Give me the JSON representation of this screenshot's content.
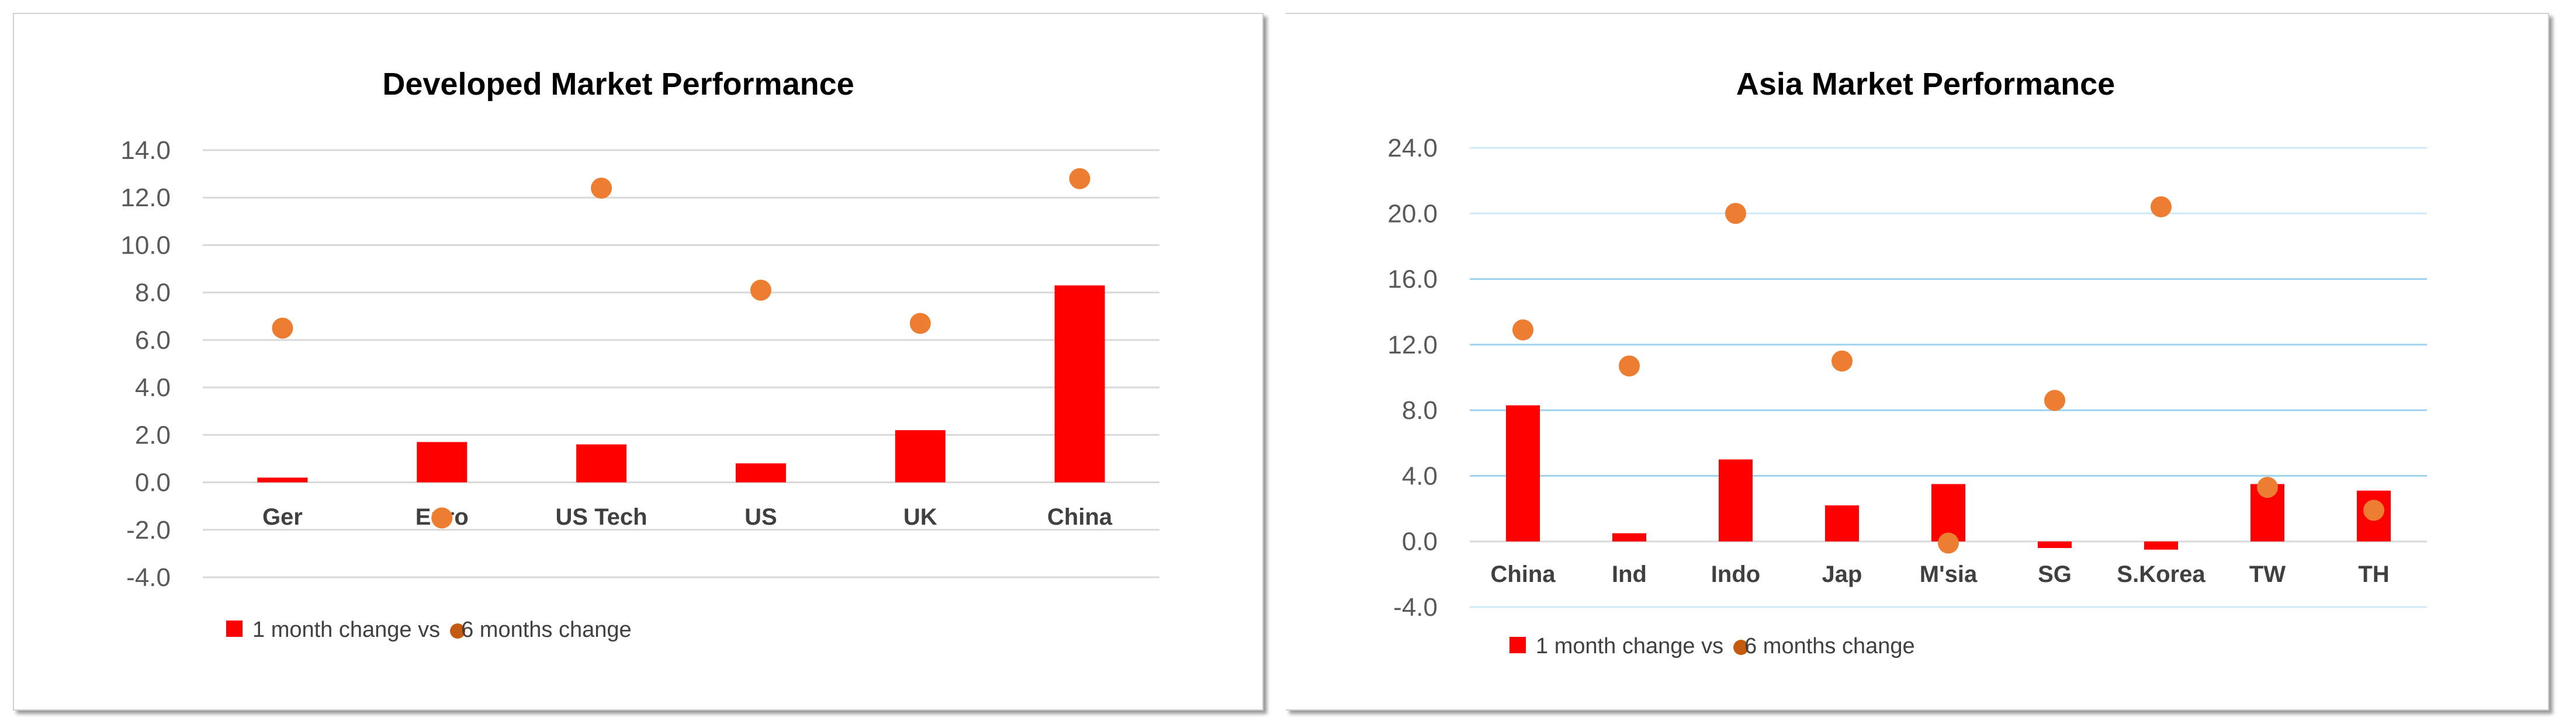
{
  "chart_data": [
    {
      "type": "bar+scatter",
      "title": "Developed Market Performance",
      "categories": [
        "Ger",
        "Euro",
        "US Tech",
        "US",
        "UK",
        "China"
      ],
      "series": [
        {
          "name": "1 month change vs",
          "type": "bar",
          "color": "#ff0000",
          "values": [
            0.2,
            1.7,
            1.6,
            0.8,
            2.2,
            8.3
          ]
        },
        {
          "name": "6 months change",
          "type": "scatter",
          "color": "#ed7d31",
          "values": [
            6.5,
            -1.5,
            12.4,
            8.1,
            6.7,
            12.8
          ]
        }
      ],
      "ylim": [
        -4,
        14
      ],
      "yticks": [
        "-4.0",
        "-2.0",
        "0.0",
        "2.0",
        "4.0",
        "6.0",
        "8.0",
        "10.0",
        "12.0",
        "14.0"
      ],
      "grid": true,
      "grid_color": "#d9d9d9",
      "legend": "bottom-left"
    },
    {
      "type": "bar+scatter",
      "title": "Asia Market Performance",
      "categories": [
        "China",
        "Ind",
        "Indo",
        "Jap",
        "M'sia",
        "SG",
        "S.Korea",
        "TW",
        "TH"
      ],
      "series": [
        {
          "name": "1 month change vs",
          "type": "bar",
          "color": "#ff0000",
          "values": [
            8.3,
            0.5,
            5.0,
            2.2,
            3.5,
            -0.4,
            -0.5,
            3.5,
            3.1
          ]
        },
        {
          "name": "6 months change",
          "type": "scatter",
          "color": "#ed7d31",
          "values": [
            12.9,
            10.7,
            20.0,
            11.0,
            -0.1,
            8.6,
            20.4,
            3.3,
            1.9
          ]
        }
      ],
      "ylim": [
        -4,
        24
      ],
      "yticks": [
        "-4.0",
        "0.0",
        "4.0",
        "8.0",
        "12.0",
        "16.0",
        "20.0",
        "24.0"
      ],
      "grid": true,
      "grid_color": "#9dd3ef",
      "legend": "bottom-left"
    }
  ]
}
